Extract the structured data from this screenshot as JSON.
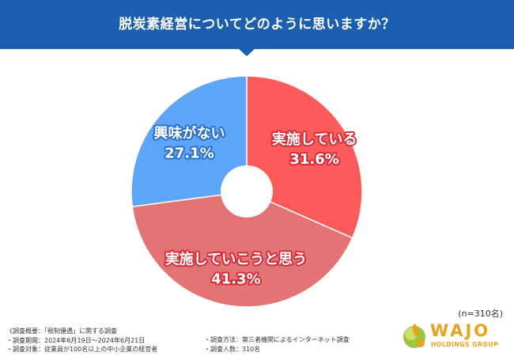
{
  "header": {
    "title": "脱炭素経営についてどのように思いますか？"
  },
  "chart_data": {
    "type": "pie",
    "title": "脱炭素経営についてどのように思いますか？",
    "donut": true,
    "slices": [
      {
        "label": "実施している",
        "value": 31.6,
        "value_label": "31.6%",
        "color": "#fd5a5a"
      },
      {
        "label": "実施していこうと思う",
        "value": 41.3,
        "value_label": "41.3%",
        "color": "#e47373"
      },
      {
        "label": "興味がない",
        "value": 27.1,
        "value_label": "27.1%",
        "color": "#5ea4f7"
      }
    ]
  },
  "sample_size": "(n=310名)",
  "notes": {
    "left": [
      "《調査概要：「税制優遇」に関する調査",
      "・調査期間：2024年6月19日〜2024年6月21日",
      "・調査対象：従業員が100名以上の中小企業の経営者"
    ],
    "right": [
      "・調査方法：第三者機関によるインターネット調査",
      "・調査人数：310名"
    ]
  },
  "logo": {
    "word": "WAJO",
    "sub": "HOLDINGS GROUP"
  }
}
